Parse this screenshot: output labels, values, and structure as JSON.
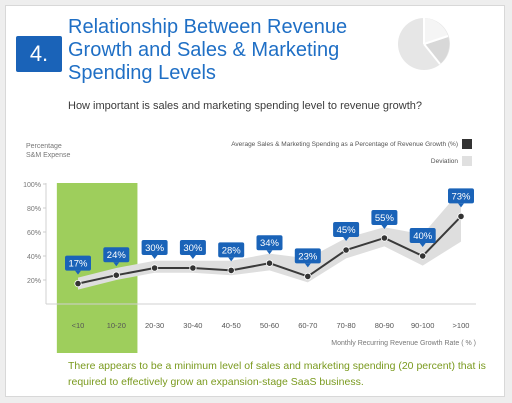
{
  "header": {
    "number": "4.",
    "title": "Relationship Between Revenue Growth and Sales & Marketing Spending Levels",
    "question": "How important is sales and marketing spending level to revenue growth?"
  },
  "footnote": "There appears to be a minimum level of sales and marketing spending (20 percent) that is required to effectively grow an expansion-stage SaaS business.",
  "colors": {
    "brand_blue": "#1a63b8",
    "highlight_green": "#8dc63f",
    "line": "#3a3a3a",
    "deviation_band": "#dcdcdc"
  },
  "chart_data": {
    "type": "line",
    "ylabel": "Percentage S&M Expense",
    "xlabel": "Monthly Recurring Revenue Growth Rate ( % )",
    "categories": [
      "<10",
      "10-20",
      "20-30",
      "30-40",
      "40-50",
      "50-60",
      "60-70",
      "70-80",
      "80-90",
      "90-100",
      ">100"
    ],
    "y_ticks": [
      "100%",
      "80%",
      "60%",
      "40%",
      "20%"
    ],
    "ylim": [
      0,
      100
    ],
    "series": [
      {
        "name": "Average Sales & Marketing Spending as a Percentage of Revenue Growth (%)",
        "values": [
          17,
          24,
          30,
          30,
          28,
          34,
          23,
          45,
          55,
          40,
          73
        ],
        "labels": [
          "17%",
          "24%",
          "30%",
          "30%",
          "28%",
          "34%",
          "23%",
          "45%",
          "55%",
          "40%",
          "73%"
        ]
      }
    ],
    "deviation": {
      "name": "Deviation",
      "upper": [
        22,
        30,
        36,
        36,
        36,
        42,
        38,
        55,
        64,
        58,
        95
      ],
      "lower": [
        12,
        20,
        26,
        26,
        24,
        28,
        18,
        38,
        48,
        32,
        52
      ]
    },
    "highlight_categories": [
      "<10",
      "10-20"
    ],
    "legend_position": "top-right",
    "grid": false
  }
}
